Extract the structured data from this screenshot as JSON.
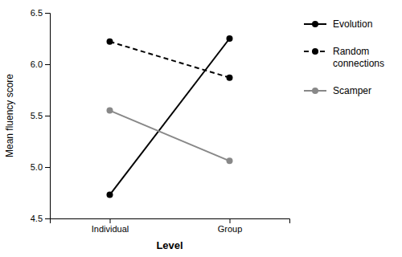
{
  "chart_data": {
    "type": "line",
    "categories": [
      "Individual",
      "Group"
    ],
    "series": [
      {
        "name": "Evolution",
        "color": "#000000",
        "line_style": "solid",
        "marker": "circle",
        "values": [
          4.73,
          6.25
        ]
      },
      {
        "name": "Random\nconnections",
        "color": "#000000",
        "line_style": "dashed",
        "marker": "circle",
        "values": [
          6.22,
          5.87
        ]
      },
      {
        "name": "Scamper",
        "color": "#888888",
        "line_style": "solid",
        "marker": "circle",
        "values": [
          5.55,
          5.06
        ]
      }
    ],
    "xlabel": "Level",
    "ylabel": "Mean fluency score",
    "ylim": [
      4.5,
      6.5
    ],
    "yticks": [
      4.5,
      {
        "value": 5.0,
        "label": "5.0"
      },
      5.5,
      {
        "value": 6.0,
        "label": "6.0"
      },
      6.5
    ],
    "grid": false,
    "legend": "right"
  }
}
